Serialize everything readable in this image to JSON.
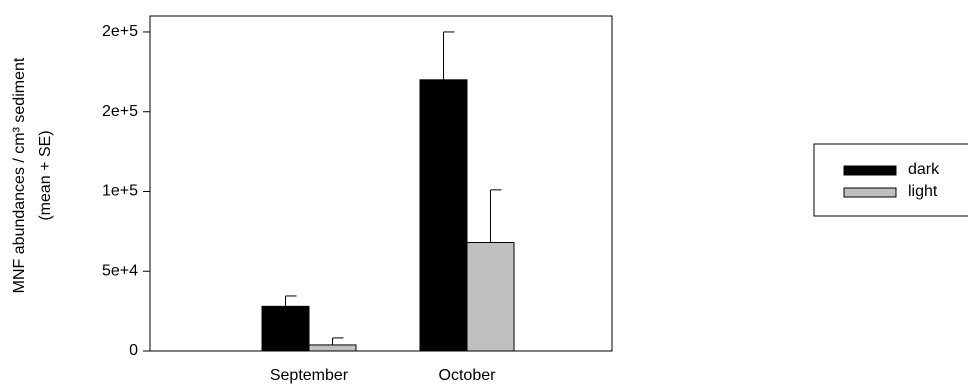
{
  "chart_data": {
    "type": "bar",
    "ylabel": [
      "MNF abundances / cm³ sediment",
      "(mean + SE)"
    ],
    "categories": [
      "September",
      "October"
    ],
    "series": [
      {
        "name": "dark",
        "color": "#000000",
        "values": [
          28000,
          170000
        ],
        "errors": [
          6500,
          30000
        ]
      },
      {
        "name": "light",
        "color": "#c0c0c0",
        "values": [
          3800,
          68000
        ],
        "errors": [
          4400,
          33000
        ]
      }
    ],
    "ylim": [
      0,
      210000
    ],
    "yticks": [
      0,
      {
        "value": 50000,
        "label": "5e+4"
      },
      {
        "value": 100000,
        "label": "1e+5"
      },
      {
        "value": 150000,
        "label": "2e+5"
      },
      {
        "value": 200000,
        "label": "2e+5"
      }
    ],
    "grid": false,
    "legend": "right"
  }
}
